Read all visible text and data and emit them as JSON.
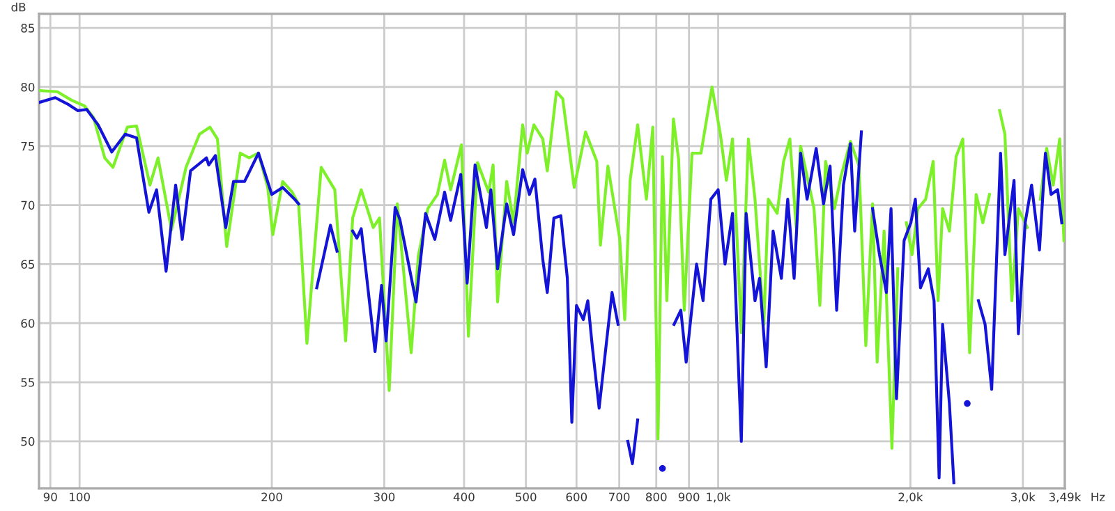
{
  "chart_data": {
    "type": "line",
    "xlabel": "Hz",
    "ylabel": "dB",
    "log": "x",
    "grid": true,
    "marker": "none",
    "line_style": "solid",
    "xlim": [
      86.4,
      3490
    ],
    "ylim": [
      46,
      86.2
    ],
    "xticks": [
      90,
      100,
      200,
      300,
      400,
      500,
      600,
      700,
      800,
      900,
      {
        "value": 1000,
        "label": "1,0k"
      },
      {
        "value": 2000,
        "label": "2,0k"
      },
      {
        "value": 3000,
        "label": "3,0k"
      },
      {
        "value": 3490,
        "label": "3,49k"
      }
    ],
    "yticks": [
      50,
      55,
      60,
      65,
      70,
      75,
      80,
      85
    ],
    "series": [
      {
        "color": "#7ef02a",
        "x": [
          86.5,
          92.3,
          97.0,
          101.8,
          105.2,
          109.5,
          112.8,
          118.8,
          122.8,
          128.9,
          132.7,
          139.3,
          146.8,
          154.1,
          160.0,
          164.4,
          170.0,
          178.5,
          184.3,
          190.6,
          197.1,
          200.7,
          208.0,
          215.2,
          220.3,
          227.0,
          239.0,
          251.0,
          261.0,
          267.7,
          276.1,
          288.3,
          294.9,
          305.4,
          314.5,
          330.6,
          339.2,
          351.1,
          363.4,
          372.9,
          381.1,
          396.3,
          406.4,
          419.9,
          437.2,
          444.2,
          451.4,
          466.5,
          478.2,
          494.1,
          502.2,
          514.6,
          531.3,
          540,
          558,
          571,
          595,
          620,
          645.5,
          654,
          672,
          701,
          714,
          728,
          748,
          772,
          790,
          805,
          818,
          831,
          851,
          867,
          885,
          910,
          940,
          978,
          1008,
          1030,
          1053,
          1087,
          1115,
          1142,
          1179,
          1198,
          1237,
          1266,
          1295,
          1325,
          1346,
          1413,
          1443,
          1473,
          1521,
          1558,
          1611,
          1662,
          1703,
          1745,
          1774,
          1819,
          1871,
          1911,
          1946,
          1971,
          2012,
          2055,
          2113,
          2171,
          2210,
          2246,
          2302,
          2358,
          2416,
          2476,
          2535,
          2597,
          2660,
          2710,
          2759,
          2812,
          2883,
          2952,
          3048,
          3120,
          3195,
          3269,
          3347,
          3426,
          3479
        ],
        "values": [
          79.7,
          79.6,
          78.9,
          78.4,
          77.4,
          74.0,
          73.2,
          76.6,
          76.7,
          71.7,
          74.0,
          67.9,
          73.2,
          76.0,
          76.6,
          75.6,
          66.5,
          74.4,
          74.0,
          74.4,
          71.5,
          67.5,
          72.0,
          71.1,
          70.1,
          58.3,
          73.2,
          71.3,
          58.5,
          68.9,
          71.3,
          68.1,
          68.9,
          54.3,
          70.1,
          57.5,
          65.7,
          69.7,
          70.9,
          73.8,
          71.3,
          75.1,
          58.9,
          73.6,
          71.1,
          73.4,
          61.8,
          72.0,
          68.5,
          76.8,
          74.4,
          76.8,
          75.6,
          72.9,
          79.6,
          79.0,
          71.5,
          76.2,
          73.7,
          66.6,
          73.3,
          67.2,
          60.3,
          72.1,
          76.8,
          70.5,
          76.6,
          50.2,
          74.1,
          61.9,
          77.3,
          73.9,
          61.1,
          74.4,
          74.4,
          80.0,
          76.0,
          72.1,
          75.6,
          59.2,
          75.6,
          70.5,
          59.9,
          70.5,
          69.3,
          73.7,
          75.6,
          68.1,
          75.0,
          69.7,
          61.5,
          73.7,
          69.7,
          72.5,
          75.4,
          73.3,
          58.1,
          70.1,
          56.7,
          67.8,
          49.4,
          64.6,
          null,
          68.5,
          65.8,
          69.7,
          70.5,
          73.7,
          61.9,
          69.7,
          67.8,
          74.1,
          75.6,
          57.5,
          70.9,
          68.5,
          70.9,
          null,
          78.0,
          76.0,
          61.9,
          69.7,
          68.1,
          null,
          70.5,
          74.8,
          71.7,
          75.6,
          67.0
        ]
      },
      {
        "color": "#1414d8",
        "x": [
          86.5,
          91.6,
          96.2,
          99.4,
          102.6,
          106.9,
          112.3,
          117.9,
          122.8,
          128.4,
          132.0,
          136.6,
          141.4,
          144.8,
          149.2,
          158.0,
          159.3,
          163.2,
          169.4,
          174.2,
          181.3,
          190.6,
          200.0,
          208.0,
          217.1,
          220.3,
          229.4,
          235.2,
          247.1,
          253.0,
          259.1,
          267.7,
          271.8,
          276.1,
          290.2,
          297.1,
          302.0,
          312.0,
          317.3,
          336.4,
          348.2,
          360.0,
          372.9,
          381.1,
          395.3,
          404.5,
          416.2,
          433.6,
          440.6,
          451.4,
          466.5,
          478.2,
          494.1,
          506.4,
          516.4,
          531.3,
          540,
          553,
          567,
          580.5,
          590,
          600,
          615,
          625,
          635,
          651,
          682,
          697,
          708,
          722,
          734,
          748,
          765,
          818,
          833,
          853,
          874,
          891,
          925,
          947,
          974,
          1000,
          1025,
          1053,
          1087,
          1106,
          1142,
          1161,
          1189,
          1219,
          1256,
          1285,
          1315,
          1346,
          1378,
          1424,
          1462,
          1497,
          1533,
          1571,
          1611,
          1636,
          1676,
          1703,
          1745,
          1789,
          1834,
          1865,
          1902,
          1955,
          2003,
          2036,
          2074,
          2133,
          2178,
          2218,
          2246,
          2302,
          2339,
          2396,
          2455,
          2496,
          2556,
          2618,
          2681,
          2768,
          2812,
          2906,
          2952,
          3025,
          3096,
          3185,
          3254,
          3321,
          3401,
          3452
        ],
        "values": [
          78.7,
          79.1,
          78.5,
          78.0,
          78.1,
          76.8,
          74.5,
          76.0,
          75.7,
          69.4,
          71.3,
          64.4,
          71.7,
          67.1,
          72.9,
          74.0,
          73.4,
          74.2,
          68.1,
          72.0,
          72.0,
          74.4,
          70.9,
          71.5,
          70.5,
          70.1,
          null,
          63.0,
          68.3,
          66.1,
          null,
          67.8,
          67.2,
          68.0,
          57.6,
          63.2,
          58.5,
          69.8,
          68.8,
          61.8,
          69.3,
          67.1,
          71.1,
          68.7,
          72.6,
          63.4,
          73.4,
          68.1,
          71.3,
          64.6,
          70.1,
          67.5,
          73.0,
          70.9,
          72.2,
          65.4,
          62.6,
          68.9,
          69.1,
          63.8,
          51.6,
          61.5,
          60.3,
          61.9,
          58.1,
          52.8,
          62.6,
          59.9,
          null,
          50.0,
          48.1,
          51.8,
          null,
          47.7,
          null,
          59.9,
          61.1,
          56.7,
          65.0,
          61.9,
          70.5,
          71.3,
          65.0,
          69.3,
          50.0,
          69.3,
          61.9,
          63.8,
          56.3,
          67.8,
          63.8,
          70.5,
          63.8,
          74.4,
          70.5,
          74.8,
          70.1,
          73.3,
          61.1,
          71.7,
          75.2,
          67.8,
          76.2,
          null,
          69.7,
          65.8,
          62.6,
          69.7,
          53.6,
          67.0,
          68.5,
          70.5,
          63.0,
          64.6,
          61.9,
          46.9,
          59.9,
          53.2,
          46.5,
          null,
          53.2,
          null,
          61.9,
          59.9,
          54.4,
          74.4,
          65.8,
          72.1,
          59.1,
          68.5,
          71.7,
          66.2,
          74.4,
          70.9,
          71.3,
          68.5
        ]
      }
    ]
  }
}
